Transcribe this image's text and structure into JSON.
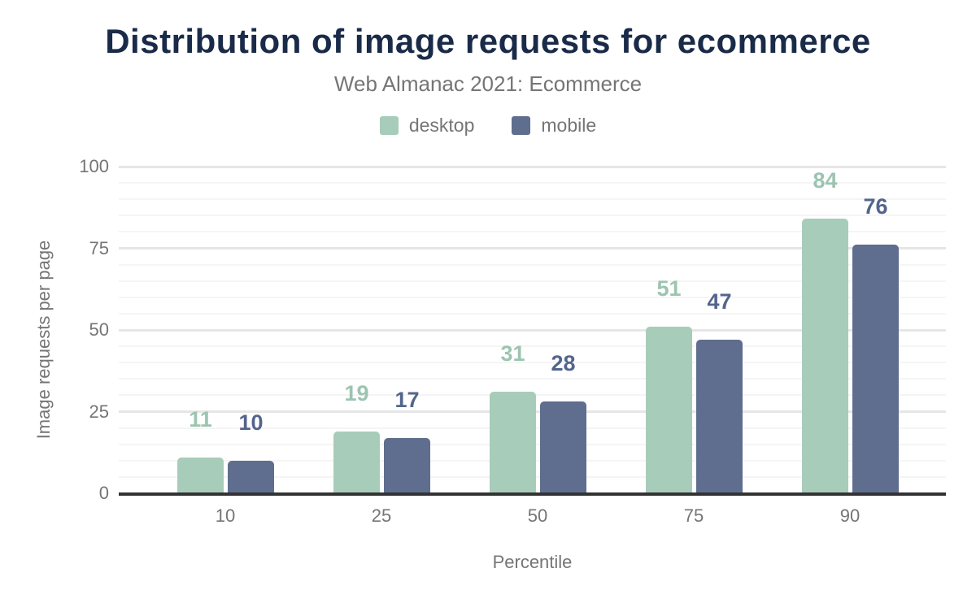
{
  "header": {
    "title": "Distribution of image requests for ecommerce",
    "subtitle": "Web Almanac 2021: Ecommerce"
  },
  "colors": {
    "title": "#1a2b49",
    "muted_text": "#757575",
    "baseline": "#333333",
    "major_gridline": "#e6e6e6",
    "minor_gridline": "#f5f5f5",
    "background": "#ffffff"
  },
  "chart_data": {
    "type": "bar",
    "title": "Distribution of image requests for ecommerce",
    "subtitle": "Web Almanac 2021: Ecommerce",
    "categories": [
      "10",
      "25",
      "50",
      "75",
      "90"
    ],
    "series": [
      {
        "name": "desktop",
        "color": "#a8ccba",
        "label_color": "#9cc4b0",
        "values": [
          11,
          19,
          31,
          51,
          84
        ]
      },
      {
        "name": "mobile",
        "color": "#5f6e8e",
        "label_color": "#54658c",
        "values": [
          10,
          17,
          28,
          47,
          76
        ]
      }
    ],
    "annotations_shown": true,
    "xlabel": "Percentile",
    "ylabel": "Image requests per page",
    "ylim": [
      0,
      100
    ],
    "yticks": [
      0,
      25,
      50,
      75,
      100
    ],
    "minor_grid_step": 5,
    "grid": "horizontal",
    "legend_position": "top"
  }
}
